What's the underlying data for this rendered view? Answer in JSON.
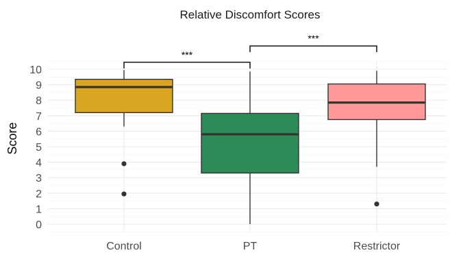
{
  "chart_data": {
    "type": "box",
    "title": "Relative Discomfort Scores",
    "xlabel": "",
    "ylabel": "Score",
    "ylim": [
      -0.5,
      10.5
    ],
    "y_ticks": [
      0,
      1,
      2,
      3,
      4,
      5,
      6,
      7,
      8,
      9,
      10
    ],
    "grid": true,
    "legend": "none",
    "categories": [
      "Control",
      "PT",
      "Restrictor"
    ],
    "boxes": [
      {
        "name": "Control",
        "whisker_low": 6.3,
        "q1": 7.2,
        "median": 8.85,
        "q3": 9.35,
        "whisker_high": 9.95,
        "outliers": [
          3.9,
          1.95
        ],
        "color": "#DAA520"
      },
      {
        "name": "PT",
        "whisker_low": 0.0,
        "q1": 3.3,
        "median": 5.8,
        "q3": 7.15,
        "whisker_high": 9.85,
        "outliers": [],
        "color": "#2E8B57"
      },
      {
        "name": "Restrictor",
        "whisker_low": 3.7,
        "q1": 6.75,
        "median": 7.85,
        "q3": 9.05,
        "whisker_high": 9.9,
        "outliers": [
          1.3
        ],
        "color": "#FF9999"
      }
    ],
    "annotations": [
      {
        "from": "Control",
        "to": "PT",
        "y": 10.45,
        "label": "***"
      },
      {
        "from": "PT",
        "to": "Restrictor",
        "y": 11.5,
        "label": "***"
      }
    ]
  }
}
